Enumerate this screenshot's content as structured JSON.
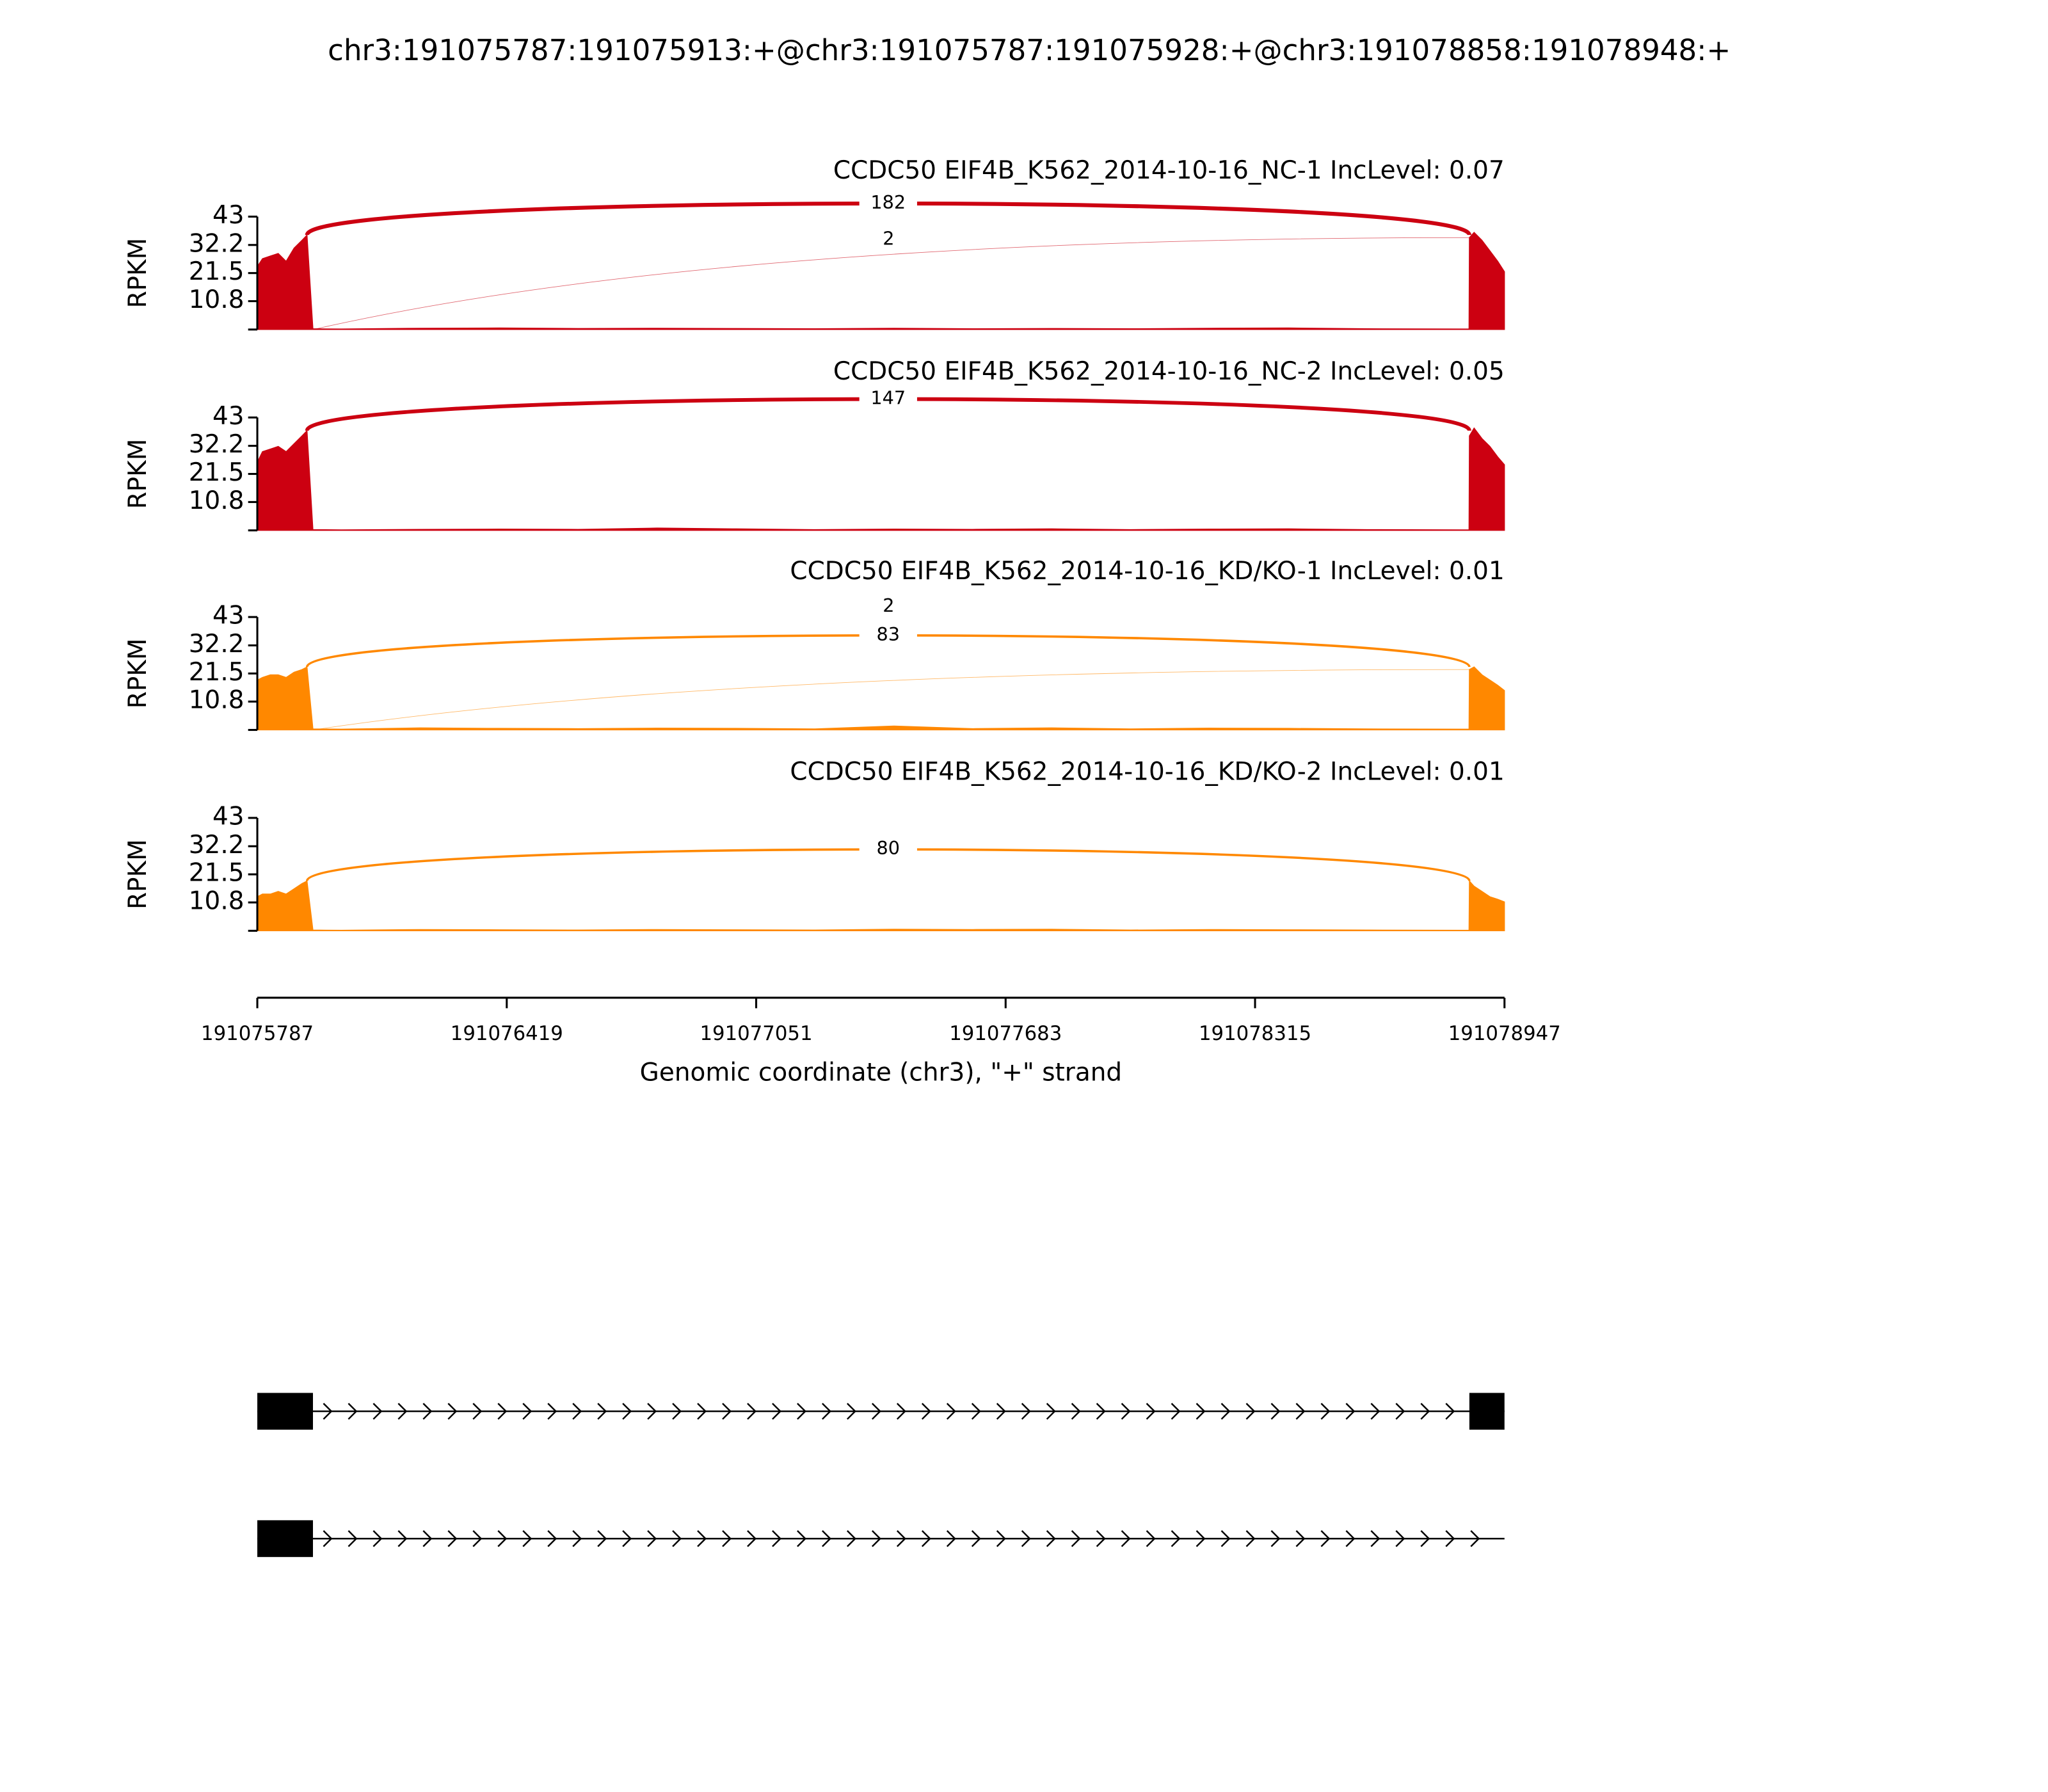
{
  "chart_data": {
    "type": "sashimi",
    "title": "chr3:191075787:191075913:+@chr3:191075787:191075928:+@chr3:191078858:191078948:+",
    "x_label": "Genomic coordinate (chr3), \"+\" strand",
    "xlim": [
      191075787,
      191078947
    ],
    "xticks": [
      191075787,
      191076419,
      191077051,
      191077683,
      191078315,
      191078947
    ],
    "x": [
      191075787,
      191075800,
      191075820,
      191075840,
      191075860,
      191075880,
      191075900,
      191075913,
      191075928,
      191076000,
      191076200,
      191076400,
      191076600,
      191076800,
      191077000,
      191077200,
      191077400,
      191077600,
      191077800,
      191078000,
      191078200,
      191078400,
      191078600,
      191078857,
      191078858,
      191078870,
      191078890,
      191078910,
      191078930,
      191078947
    ],
    "panels": [
      {
        "name": "CCDC50 EIF4B_K562_2014-10-16_NC-1 IncLevel: 0.07",
        "color": "#cc0011",
        "y_label": "RPKM",
        "ylim": [
          0,
          43
        ],
        "yticks": [
          10.8,
          21.5,
          32.2,
          43
        ],
        "values": [
          24,
          27,
          28,
          29,
          26,
          31,
          34,
          36,
          0.3,
          0.2,
          0.5,
          0.6,
          0.4,
          0.5,
          0.4,
          0.3,
          0.5,
          0.3,
          0.4,
          0.3,
          0.5,
          0.6,
          0.3,
          0.2,
          35,
          37,
          34,
          30,
          26,
          22
        ],
        "junctions": [
          {
            "start": 191075913,
            "end": 191078858,
            "count": 182
          },
          {
            "start": 191075928,
            "end": 191078858,
            "count": 2
          }
        ]
      },
      {
        "name": "CCDC50 EIF4B_K562_2014-10-16_NC-2 IncLevel: 0.05",
        "color": "#cc0011",
        "y_label": "RPKM",
        "ylim": [
          0,
          43
        ],
        "yticks": [
          10.8,
          21.5,
          32.2,
          43
        ],
        "values": [
          26,
          30,
          31,
          32,
          30,
          33,
          36,
          38,
          0.3,
          0.2,
          0.4,
          0.5,
          0.4,
          0.9,
          0.6,
          0.3,
          0.5,
          0.4,
          0.6,
          0.3,
          0.5,
          0.6,
          0.3,
          0.2,
          36,
          39,
          35,
          32,
          28,
          25
        ],
        "junctions": [
          {
            "start": 191075913,
            "end": 191078858,
            "count": 147
          }
        ]
      },
      {
        "name": "CCDC50 EIF4B_K562_2014-10-16_KD/KO-1 IncLevel: 0.01",
        "color": "#ff8800",
        "y_label": "RPKM",
        "ylim": [
          0,
          43
        ],
        "yticks": [
          10.8,
          21.5,
          32.2,
          43
        ],
        "values": [
          19,
          20,
          21,
          21,
          20,
          22,
          23,
          24,
          0.4,
          0.3,
          0.8,
          0.6,
          0.5,
          0.7,
          0.6,
          0.4,
          1.5,
          0.5,
          0.8,
          0.4,
          0.7,
          0.6,
          0.4,
          0.3,
          23,
          24,
          21,
          19,
          17,
          15
        ],
        "junctions": [
          {
            "start": 191075913,
            "end": 191078858,
            "count": 83
          },
          {
            "start": 191075928,
            "end": 191078858,
            "count": 2
          }
        ]
      },
      {
        "name": "CCDC50 EIF4B_K562_2014-10-16_KD/KO-2 IncLevel: 0.01",
        "color": "#ff8800",
        "y_label": "RPKM",
        "ylim": [
          0,
          43
        ],
        "yticks": [
          10.8,
          21.5,
          32.2,
          43
        ],
        "values": [
          13,
          14,
          14,
          15,
          14,
          16,
          18,
          19,
          0.3,
          0.2,
          0.5,
          0.4,
          0.3,
          0.5,
          0.4,
          0.3,
          0.6,
          0.5,
          0.6,
          0.3,
          0.5,
          0.4,
          0.3,
          0.2,
          19,
          17,
          15,
          13,
          12,
          11
        ],
        "junctions": [
          {
            "start": 191075913,
            "end": 191078858,
            "count": 80
          }
        ]
      }
    ],
    "transcripts": [
      {
        "exons": [
          [
            191075787,
            191075928
          ],
          [
            191078858,
            191078947
          ]
        ],
        "end": 191078947
      },
      {
        "exons": [
          [
            191075787,
            191075928
          ]
        ],
        "end": 191078947
      }
    ]
  }
}
